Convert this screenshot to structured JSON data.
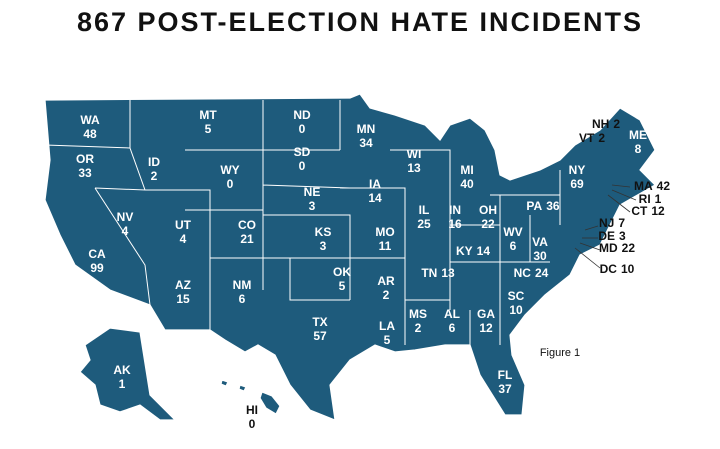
{
  "title": "867 POST-ELECTION HATE INCIDENTS",
  "figure_label": "Figure 1",
  "states": [
    {
      "abbr": "WA",
      "count": 48
    },
    {
      "abbr": "MT",
      "count": 5
    },
    {
      "abbr": "ND",
      "count": 0
    },
    {
      "abbr": "MN",
      "count": 34
    },
    {
      "abbr": "ME",
      "count": 8
    },
    {
      "abbr": "NH",
      "count": 2
    },
    {
      "abbr": "VT",
      "count": 2
    },
    {
      "abbr": "WI",
      "count": 13
    },
    {
      "abbr": "OR",
      "count": 33
    },
    {
      "abbr": "ID",
      "count": 2
    },
    {
      "abbr": "SD",
      "count": 0
    },
    {
      "abbr": "WY",
      "count": 0
    },
    {
      "abbr": "MI",
      "count": 40
    },
    {
      "abbr": "NY",
      "count": 69
    },
    {
      "abbr": "MA",
      "count": 42
    },
    {
      "abbr": "RI",
      "count": 1
    },
    {
      "abbr": "CT",
      "count": 12
    },
    {
      "abbr": "IA",
      "count": 14
    },
    {
      "abbr": "NE",
      "count": 3
    },
    {
      "abbr": "PA",
      "count": 36
    },
    {
      "abbr": "OH",
      "count": 22
    },
    {
      "abbr": "IN",
      "count": 16
    },
    {
      "abbr": "IL",
      "count": 25
    },
    {
      "abbr": "NV",
      "count": 4
    },
    {
      "abbr": "UT",
      "count": 4
    },
    {
      "abbr": "CO",
      "count": 21
    },
    {
      "abbr": "NJ",
      "count": 7
    },
    {
      "abbr": "DE",
      "count": 3
    },
    {
      "abbr": "MD",
      "count": 22
    },
    {
      "abbr": "KS",
      "count": 3
    },
    {
      "abbr": "MO",
      "count": 11
    },
    {
      "abbr": "WV",
      "count": 6
    },
    {
      "abbr": "VA",
      "count": 30
    },
    {
      "abbr": "KY",
      "count": 14
    },
    {
      "abbr": "DC",
      "count": 10
    },
    {
      "abbr": "CA",
      "count": 99
    },
    {
      "abbr": "TN",
      "count": 13
    },
    {
      "abbr": "NC",
      "count": 24
    },
    {
      "abbr": "OK",
      "count": 5
    },
    {
      "abbr": "AR",
      "count": 2
    },
    {
      "abbr": "AZ",
      "count": 15
    },
    {
      "abbr": "NM",
      "count": 6
    },
    {
      "abbr": "SC",
      "count": 10
    },
    {
      "abbr": "MS",
      "count": 2
    },
    {
      "abbr": "AL",
      "count": 6
    },
    {
      "abbr": "GA",
      "count": 12
    },
    {
      "abbr": "TX",
      "count": 57
    },
    {
      "abbr": "LA",
      "count": 5
    },
    {
      "abbr": "FL",
      "count": 37
    },
    {
      "abbr": "AK",
      "count": 1
    },
    {
      "abbr": "HI",
      "count": 0
    }
  ]
}
